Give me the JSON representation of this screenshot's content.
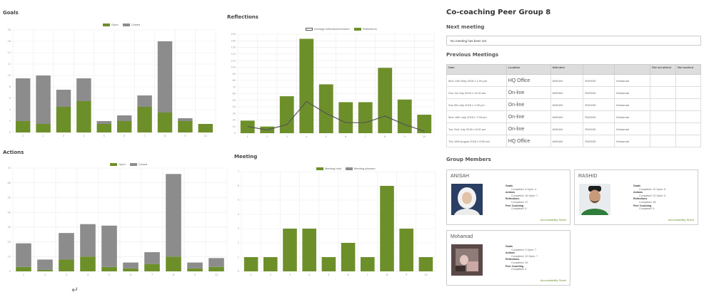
{
  "colors": {
    "green": "#6d8f2a",
    "gray": "#8c8c8c",
    "grid": "#ebebeb",
    "line": "#555555"
  },
  "goals": {
    "title": "Goals",
    "legend": [
      "Open",
      "Closed"
    ],
    "chart_data": {
      "type": "bar",
      "stacked": true,
      "categories": [
        "1",
        "2",
        "3",
        "4",
        "5",
        "6",
        "7",
        "8",
        "9",
        "10"
      ],
      "series": [
        {
          "name": "Open",
          "values": [
            2,
            1.5,
            4.5,
            5.5,
            1.5,
            2,
            4.5,
            3.5,
            2,
            1.5
          ]
        },
        {
          "name": "Closed",
          "values": [
            7.5,
            8.5,
            3,
            4,
            0.5,
            1,
            2,
            12.5,
            0.5,
            0
          ]
        }
      ],
      "ylim": [
        0,
        18
      ],
      "yticks": [
        "0",
        "2",
        "4",
        "6",
        "8",
        "10",
        "12",
        "14",
        "16",
        "18"
      ],
      "grid": true,
      "legend_position": "top-center"
    }
  },
  "reflections": {
    "title": "Reflections",
    "legend": [
      "Average reflections/member",
      "Reflections"
    ],
    "chart_data": {
      "type": "bar",
      "categories": [
        "1",
        "2",
        "3",
        "4",
        "5",
        "6",
        "7",
        "8",
        "9",
        "10"
      ],
      "values": [
        19,
        10,
        56,
        143,
        74,
        47,
        47,
        99,
        51,
        28
      ],
      "line_values": [
        10,
        5,
        13,
        48,
        30,
        16,
        16,
        26,
        13,
        3
      ],
      "ylim": [
        0,
        150
      ],
      "yticks": [
        "0",
        "10",
        "20",
        "30",
        "40",
        "50",
        "60",
        "70",
        "80",
        "90",
        "100",
        "110",
        "120",
        "130",
        "140",
        "150"
      ],
      "grid": true,
      "legend_position": "top-center"
    }
  },
  "actions": {
    "title": "Actions",
    "legend": [
      "Open",
      "Closed"
    ],
    "chart_data": {
      "type": "bar",
      "stacked": true,
      "categories": [
        "1",
        "2",
        "3",
        "4",
        "5",
        "6",
        "7",
        "8",
        "9",
        "10"
      ],
      "series": [
        {
          "name": "Open",
          "values": [
            3,
            1,
            8,
            10,
            3,
            2,
            5,
            10,
            2,
            3
          ]
        },
        {
          "name": "Closed",
          "values": [
            16,
            7,
            18,
            22,
            28,
            4,
            8,
            56,
            4,
            6
          ]
        }
      ],
      "ylim": [
        0,
        70
      ],
      "yticks": [
        "0",
        "10",
        "20",
        "30",
        "40",
        "50",
        "60",
        "70"
      ],
      "grid": true,
      "legend_position": "top-center"
    }
  },
  "meeting": {
    "title": "Meeting",
    "legend": [
      "Meeting held",
      "Meeting planned"
    ],
    "chart_data": {
      "type": "bar",
      "categories": [
        "1",
        "2",
        "3",
        "4",
        "5",
        "6",
        "7",
        "8",
        "9",
        "10"
      ],
      "values": [
        1,
        1,
        3,
        3,
        1,
        2,
        1,
        6,
        3,
        1
      ],
      "ylim": [
        0,
        7
      ],
      "yticks": [
        "0",
        "1",
        "2",
        "3",
        "4",
        "5",
        "6",
        "7"
      ],
      "grid": true,
      "legend_position": "top-center"
    }
  },
  "group": {
    "title": "Co-coaching Peer Group 8",
    "next_meeting_title": "Next meeting",
    "next_meeting_text": "No meeting has been set",
    "previous_title": "Previous Meetings",
    "table_headers": [
      "Date",
      "Location",
      "Attended",
      "",
      "",
      "Did not attend",
      "Not marked"
    ],
    "rows": [
      {
        "date": "Mon 14th May 2018 x 1:00 pm",
        "location": "HQ Office",
        "a1": "ANISAH",
        "a2": "RASHID",
        "a3": "Mohamad"
      },
      {
        "date": "Sun 1st July 2018 x 11:00 am",
        "location": "On-line",
        "a1": "ANISAH",
        "a2": "RASHID",
        "a3": "Mohamad"
      },
      {
        "date": "Sun 8th July 2018 x 1:00 pm",
        "location": "On-line",
        "a1": "ANISAH",
        "a2": "RASHID",
        "a3": "Mohamad"
      },
      {
        "date": "Mon 16th July 2018 x 7:00 pm",
        "location": "On-line",
        "a1": "ANISAH",
        "a2": "RASHID",
        "a3": "Mohamad"
      },
      {
        "date": "Tue 31st July 2018 x 6:00 pm",
        "location": "On-line",
        "a1": "ANISAH",
        "a2": "RASHID",
        "a3": "Mohamad"
      },
      {
        "date": "Thu 16th August 2018 x 8:00 am",
        "location": "HQ Office",
        "a1": "ANISAH",
        "a2": "RASHID",
        "a3": "Mohamad"
      }
    ],
    "members_title": "Group Members",
    "members": [
      {
        "name": "ANISAH",
        "goals_label": "Goals",
        "goals": "Completed: 6 Open: 4",
        "actions_label": "Actions",
        "actions": "Completed: 26 Open: 7",
        "reflections_label": "Reflections",
        "reflections": "Completed: 37",
        "peer_label": "Peer Coaching",
        "peer": "Completed: 5",
        "link": "Accountability Sheet"
      },
      {
        "name": "RASHID",
        "goals_label": "Goals",
        "goals": "Completed: 10 Open: 6",
        "actions_label": "Actions",
        "actions": "Completed: 22 Open: 5",
        "reflections_label": "Reflections",
        "reflections": "Completed: 38",
        "peer_label": "Peer Coaching",
        "peer": "Completed: 5",
        "link": "Accountability Sheet"
      },
      {
        "name": "Mohamad",
        "goals_label": "Goals",
        "goals": "Completed: 3 Open: 7",
        "actions_label": "Actions",
        "actions": "Completed: 20 Open: 7",
        "reflections_label": "Reflections",
        "reflections": "Completed: 30",
        "peer_label": "Peer Coaching",
        "peer": "Completed: 5",
        "link": "Accountability Sheet"
      }
    ]
  },
  "return_glyph": "↵"
}
